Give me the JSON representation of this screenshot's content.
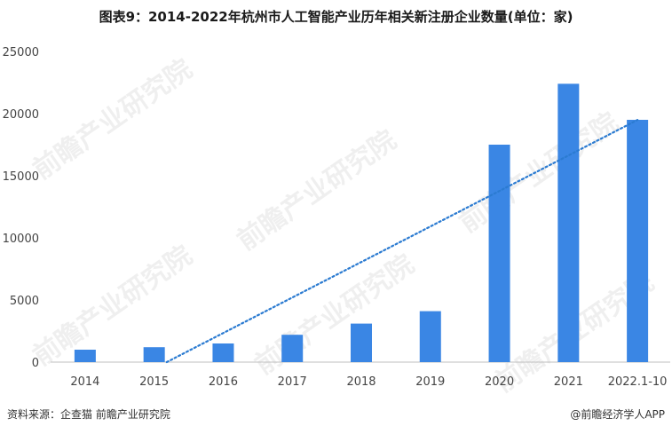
{
  "title": "图表9：2014-2022年杭州市人工智能产业历年相关新注册企业数量(单位：家)",
  "source": "资料来源：企查猫 前瞻产业研究院",
  "credit": "@前瞻经济学人APP",
  "watermark": "前瞻产业研究院",
  "colors": {
    "bar": "#3a86e4",
    "trend": "#2b7bd1",
    "axis": "#bfbfbf"
  },
  "chart_data": {
    "type": "bar",
    "title": "图表9：2014-2022年杭州市人工智能产业历年相关新注册企业数量(单位：家)",
    "categories": [
      "2014",
      "2015",
      "2016",
      "2017",
      "2018",
      "2019",
      "2020",
      "2021",
      "2022.1-10"
    ],
    "values": [
      1000,
      1200,
      1500,
      2200,
      3100,
      4100,
      17500,
      22400,
      19500
    ],
    "ylim": [
      0,
      25000
    ],
    "yticks": [
      "0",
      "5000",
      "10000",
      "15000",
      "20000",
      "25000"
    ],
    "trendline": {
      "style": "dotted",
      "type": "linear"
    },
    "grid": false,
    "legend": "none"
  }
}
